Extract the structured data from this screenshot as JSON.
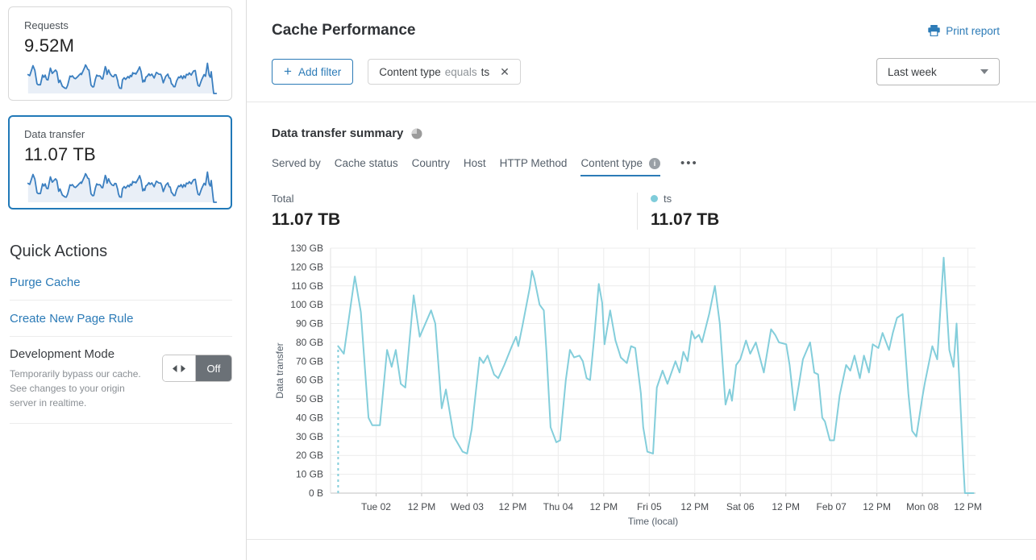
{
  "sidebar": {
    "cards": [
      {
        "label": "Requests",
        "value": "9.52M",
        "selected": false
      },
      {
        "label": "Data transfer",
        "value": "11.07 TB",
        "selected": true
      }
    ],
    "quick_actions_title": "Quick Actions",
    "quick_links": [
      "Purge Cache",
      "Create New Page Rule"
    ],
    "dev_mode": {
      "title": "Development Mode",
      "description": "Temporarily bypass our cache. See changes to your origin server in realtime.",
      "toggle_state": "Off"
    }
  },
  "header": {
    "title": "Cache Performance",
    "print_label": "Print report",
    "add_filter_label": "Add filter",
    "filter_chip": {
      "field": "Content type",
      "operator": "equals",
      "value": "ts"
    },
    "time_range_selected": "Last week"
  },
  "summary": {
    "title": "Data transfer summary",
    "tabs": [
      "Served by",
      "Cache status",
      "Country",
      "Host",
      "HTTP Method",
      "Content type"
    ],
    "active_tab": "Content type",
    "total_label": "Total",
    "total_value": "11.07 TB",
    "legend": {
      "name": "ts",
      "value": "11.07 TB"
    }
  },
  "colors": {
    "accent_blue": "#2c7bb7",
    "chart_line": "#84cedb",
    "legend_dot": "#7fccda",
    "spark_line": "#3b7fc0",
    "spark_fill": "#e9eff7",
    "grid_line": "#ececec",
    "axis_line": "#c2c2c2",
    "toggle_off_bg": "#6b7177"
  },
  "chart_data": {
    "type": "line",
    "title": "Data transfer summary",
    "xlabel": "Time (local)",
    "ylabel": "Data transfer",
    "y_unit": "GB",
    "ylim": [
      0,
      130
    ],
    "y_tick_step": 10,
    "y_tick_labels": [
      "0 B",
      "10 GB",
      "20 GB",
      "30 GB",
      "40 GB",
      "50 GB",
      "60 GB",
      "70 GB",
      "80 GB",
      "90 GB",
      "100 GB",
      "110 GB",
      "120 GB",
      "130 GB"
    ],
    "x_range_hours": [
      0,
      170
    ],
    "x_ticks": [
      {
        "hour": 12,
        "label": "Tue 02"
      },
      {
        "hour": 24,
        "label": "12 PM"
      },
      {
        "hour": 36,
        "label": "Wed 03"
      },
      {
        "hour": 48,
        "label": "12 PM"
      },
      {
        "hour": 60,
        "label": "Thu 04"
      },
      {
        "hour": 72,
        "label": "12 PM"
      },
      {
        "hour": 84,
        "label": "Fri 05"
      },
      {
        "hour": 96,
        "label": "12 PM"
      },
      {
        "hour": 108,
        "label": "Sat 06"
      },
      {
        "hour": 120,
        "label": "12 PM"
      },
      {
        "hour": 132,
        "label": "Feb 07"
      },
      {
        "hour": 144,
        "label": "12 PM"
      },
      {
        "hour": 156,
        "label": "Mon 08"
      },
      {
        "hour": 168,
        "label": "12 PM"
      }
    ],
    "grid": true,
    "series": [
      {
        "name": "ts",
        "dashed_leading_drop": true,
        "points_hour_gb": [
          [
            2,
            78
          ],
          [
            3.5,
            74
          ],
          [
            6.4,
            115
          ],
          [
            8,
            96
          ],
          [
            10,
            40
          ],
          [
            11,
            36
          ],
          [
            13,
            36
          ],
          [
            14.9,
            76
          ],
          [
            16.1,
            67
          ],
          [
            17.2,
            76
          ],
          [
            18.5,
            58
          ],
          [
            19.7,
            56
          ],
          [
            21.9,
            105
          ],
          [
            23.5,
            83
          ],
          [
            26.5,
            97
          ],
          [
            27.6,
            90
          ],
          [
            29.3,
            45
          ],
          [
            30.4,
            55
          ],
          [
            32.5,
            30
          ],
          [
            34.8,
            22
          ],
          [
            36,
            21
          ],
          [
            37.2,
            34
          ],
          [
            39.3,
            72
          ],
          [
            40.3,
            69
          ],
          [
            41.4,
            73
          ],
          [
            43.1,
            63
          ],
          [
            44.2,
            61
          ],
          [
            45.8,
            68
          ],
          [
            47.8,
            78
          ],
          [
            48.9,
            83
          ],
          [
            49.5,
            78
          ],
          [
            50.6,
            89
          ],
          [
            52.5,
            109
          ],
          [
            53.1,
            118
          ],
          [
            53.7,
            114
          ],
          [
            55.1,
            100
          ],
          [
            56.2,
            97
          ],
          [
            56.9,
            75
          ],
          [
            58,
            35
          ],
          [
            59.5,
            27
          ],
          [
            60.5,
            28
          ],
          [
            62,
            60
          ],
          [
            63.1,
            76
          ],
          [
            64.2,
            72
          ],
          [
            65.6,
            73
          ],
          [
            66.5,
            70
          ],
          [
            67.5,
            61
          ],
          [
            68.4,
            60
          ],
          [
            69.5,
            83
          ],
          [
            70.7,
            111
          ],
          [
            71.6,
            101
          ],
          [
            72.2,
            79
          ],
          [
            73.7,
            97
          ],
          [
            74.4,
            89
          ],
          [
            75.1,
            81
          ],
          [
            76.5,
            72
          ],
          [
            78.1,
            69
          ],
          [
            79.2,
            78
          ],
          [
            80.3,
            77
          ],
          [
            81.8,
            53
          ],
          [
            82.4,
            35
          ],
          [
            83.5,
            22
          ],
          [
            85,
            21
          ],
          [
            86,
            56
          ],
          [
            87.5,
            65
          ],
          [
            88.8,
            58
          ],
          [
            90.9,
            70
          ],
          [
            92,
            64
          ],
          [
            93,
            75
          ],
          [
            94.1,
            70
          ],
          [
            95.2,
            86
          ],
          [
            96,
            82
          ],
          [
            97.1,
            84
          ],
          [
            97.9,
            80
          ],
          [
            99.8,
            95
          ],
          [
            101.3,
            110
          ],
          [
            102.6,
            90
          ],
          [
            104.1,
            47
          ],
          [
            105.2,
            55
          ],
          [
            105.8,
            49
          ],
          [
            106.9,
            68
          ],
          [
            108,
            71
          ],
          [
            109.5,
            81
          ],
          [
            110.6,
            74
          ],
          [
            112.1,
            80
          ],
          [
            114.2,
            64
          ],
          [
            116.1,
            87
          ],
          [
            117.2,
            84
          ],
          [
            118.2,
            80
          ],
          [
            120.1,
            79
          ],
          [
            121,
            68
          ],
          [
            122.3,
            44
          ],
          [
            123.4,
            57
          ],
          [
            124.5,
            71
          ],
          [
            126.4,
            80
          ],
          [
            127.5,
            64
          ],
          [
            128.5,
            63
          ],
          [
            129.6,
            40
          ],
          [
            130.3,
            38
          ],
          [
            131.6,
            28
          ],
          [
            132.7,
            28
          ],
          [
            134.2,
            52
          ],
          [
            135.9,
            68
          ],
          [
            137,
            65
          ],
          [
            138.1,
            73
          ],
          [
            139.5,
            61
          ],
          [
            140.6,
            73
          ],
          [
            141.9,
            64
          ],
          [
            142.9,
            79
          ],
          [
            144.4,
            77
          ],
          [
            145.5,
            85
          ],
          [
            147.2,
            76
          ],
          [
            148.2,
            85
          ],
          [
            149.3,
            93
          ],
          [
            150.8,
            95
          ],
          [
            152.3,
            53
          ],
          [
            153.3,
            33
          ],
          [
            154.4,
            30
          ],
          [
            156,
            51
          ],
          [
            156.6,
            58
          ],
          [
            158.6,
            78
          ],
          [
            159.9,
            71
          ],
          [
            161.6,
            125
          ],
          [
            163.1,
            76
          ],
          [
            164.2,
            67
          ],
          [
            165,
            90
          ],
          [
            166,
            48
          ],
          [
            166.8,
            15
          ],
          [
            167.2,
            0
          ],
          [
            169.5,
            0
          ]
        ]
      }
    ]
  }
}
